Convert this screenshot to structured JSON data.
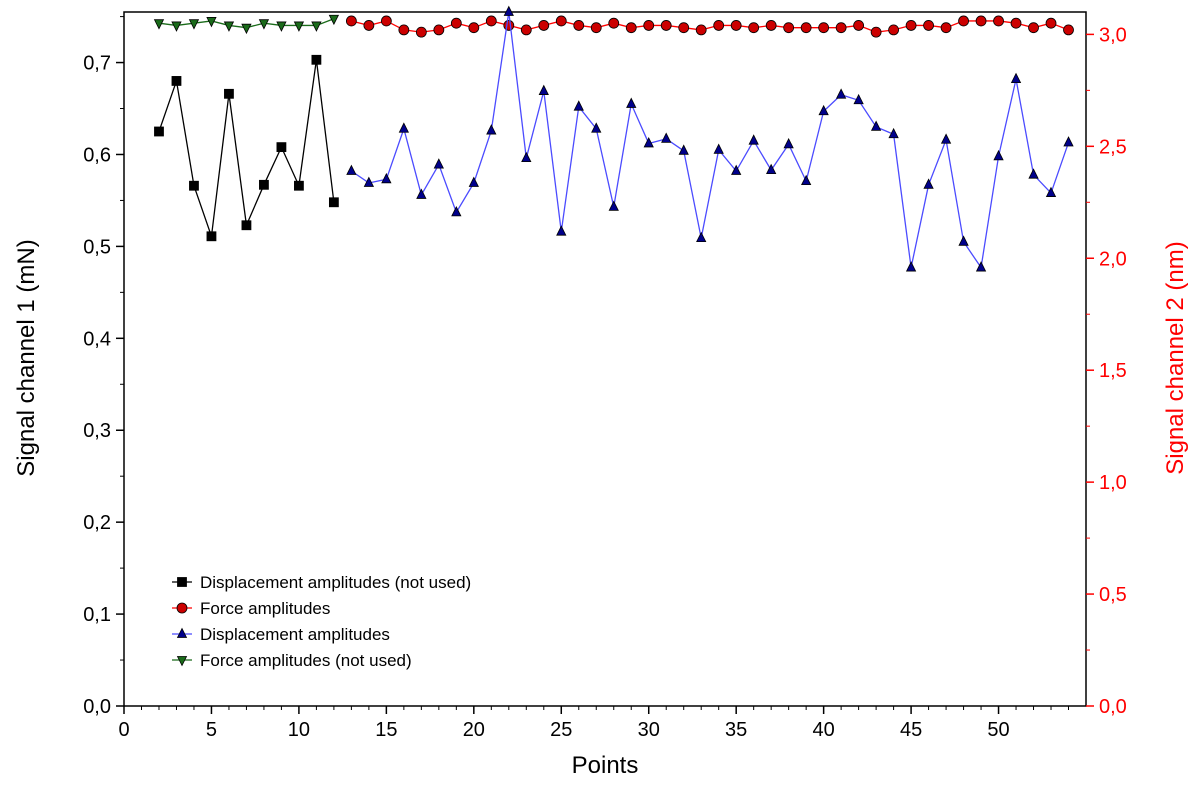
{
  "chart_data": {
    "type": "line",
    "xlabel": "Points",
    "ylabel_left": "Signal channel 1 (mN)",
    "ylabel_right": "Signal channel 2 (nm)",
    "xlim": [
      0,
      55
    ],
    "ylim_left": [
      0,
      0.755
    ],
    "ylim_right": [
      0,
      3.1
    ],
    "x_ticks": [
      "0",
      "5",
      "10",
      "15",
      "20",
      "25",
      "30",
      "35",
      "40",
      "45",
      "50"
    ],
    "x_tick_values": [
      0,
      5,
      10,
      15,
      20,
      25,
      30,
      35,
      40,
      45,
      50
    ],
    "y_left_ticks": [
      "0,0",
      "0,1",
      "0,2",
      "0,3",
      "0,4",
      "0,5",
      "0,6",
      "0,7"
    ],
    "y_left_tick_values": [
      0,
      0.1,
      0.2,
      0.3,
      0.4,
      0.5,
      0.6,
      0.7
    ],
    "y_right_ticks": [
      "0,0",
      "0,5",
      "1,0",
      "1,5",
      "2,0",
      "2,5",
      "3,0"
    ],
    "y_right_tick_values": [
      0,
      0.5,
      1.0,
      1.5,
      2.0,
      2.5,
      3.0
    ],
    "grid": false,
    "legend_position": "bottom-left",
    "colors": {
      "black": "#000000",
      "red_marker": "#cc0000",
      "red_line": "#ff0000",
      "blue_marker": "#00008b",
      "blue_line": "#4b4bff",
      "green_marker": "#1a6b1a",
      "green_line": "#1a6b1a",
      "right_axis": "#ff0000"
    },
    "series": [
      {
        "name": "Displacement amplitudes (not used)",
        "axis": "left",
        "marker": "square",
        "line_color": "#000000",
        "marker_color": "#000000",
        "x": [
          2,
          3,
          4,
          5,
          6,
          7,
          8,
          9,
          10,
          11,
          12
        ],
        "y": [
          0.625,
          0.68,
          0.566,
          0.511,
          0.666,
          0.523,
          0.567,
          0.608,
          0.566,
          0.703,
          0.548
        ]
      },
      {
        "name": "Force amplitudes",
        "axis": "right",
        "marker": "circle",
        "line_color": "#ff0000",
        "marker_color": "#cc0000",
        "x": [
          13,
          14,
          15,
          16,
          17,
          18,
          19,
          20,
          21,
          22,
          23,
          24,
          25,
          26,
          27,
          28,
          29,
          30,
          31,
          32,
          33,
          34,
          35,
          36,
          37,
          38,
          39,
          40,
          41,
          42,
          43,
          44,
          45,
          46,
          47,
          48,
          49,
          50,
          51,
          52,
          53,
          54
        ],
        "y": [
          3.06,
          3.04,
          3.06,
          3.02,
          3.01,
          3.02,
          3.05,
          3.03,
          3.06,
          3.04,
          3.02,
          3.04,
          3.06,
          3.04,
          3.03,
          3.05,
          3.03,
          3.04,
          3.04,
          3.03,
          3.02,
          3.04,
          3.04,
          3.03,
          3.04,
          3.03,
          3.03,
          3.03,
          3.03,
          3.04,
          3.01,
          3.02,
          3.04,
          3.04,
          3.03,
          3.06,
          3.06,
          3.06,
          3.05,
          3.03,
          3.05,
          3.02
        ]
      },
      {
        "name": "Displacement amplitudes",
        "axis": "left",
        "marker": "triangle-up",
        "line_color": "#4b4bff",
        "marker_color": "#00008b",
        "x": [
          13,
          14,
          15,
          16,
          17,
          18,
          19,
          20,
          21,
          22,
          23,
          24,
          25,
          26,
          27,
          28,
          29,
          30,
          31,
          32,
          33,
          34,
          35,
          36,
          37,
          38,
          39,
          40,
          41,
          42,
          43,
          44,
          45,
          46,
          47,
          48,
          49,
          50,
          51,
          52,
          53,
          54
        ],
        "y": [
          0.582,
          0.569,
          0.573,
          0.628,
          0.556,
          0.589,
          0.537,
          0.569,
          0.626,
          0.755,
          0.596,
          0.669,
          0.516,
          0.652,
          0.628,
          0.543,
          0.655,
          0.612,
          0.617,
          0.604,
          0.509,
          0.605,
          0.582,
          0.615,
          0.583,
          0.611,
          0.571,
          0.647,
          0.665,
          0.659,
          0.63,
          0.622,
          0.477,
          0.567,
          0.616,
          0.505,
          0.477,
          0.598,
          0.682,
          0.578,
          0.558,
          0.613
        ]
      },
      {
        "name": "Force amplitudes (not used)",
        "axis": "right",
        "marker": "triangle-down",
        "line_color": "#1a6b1a",
        "marker_color": "#1a6b1a",
        "x": [
          2,
          3,
          4,
          5,
          6,
          7,
          8,
          9,
          10,
          11,
          12
        ],
        "y": [
          3.05,
          3.04,
          3.05,
          3.06,
          3.04,
          3.03,
          3.05,
          3.04,
          3.04,
          3.04,
          3.07
        ]
      }
    ]
  }
}
